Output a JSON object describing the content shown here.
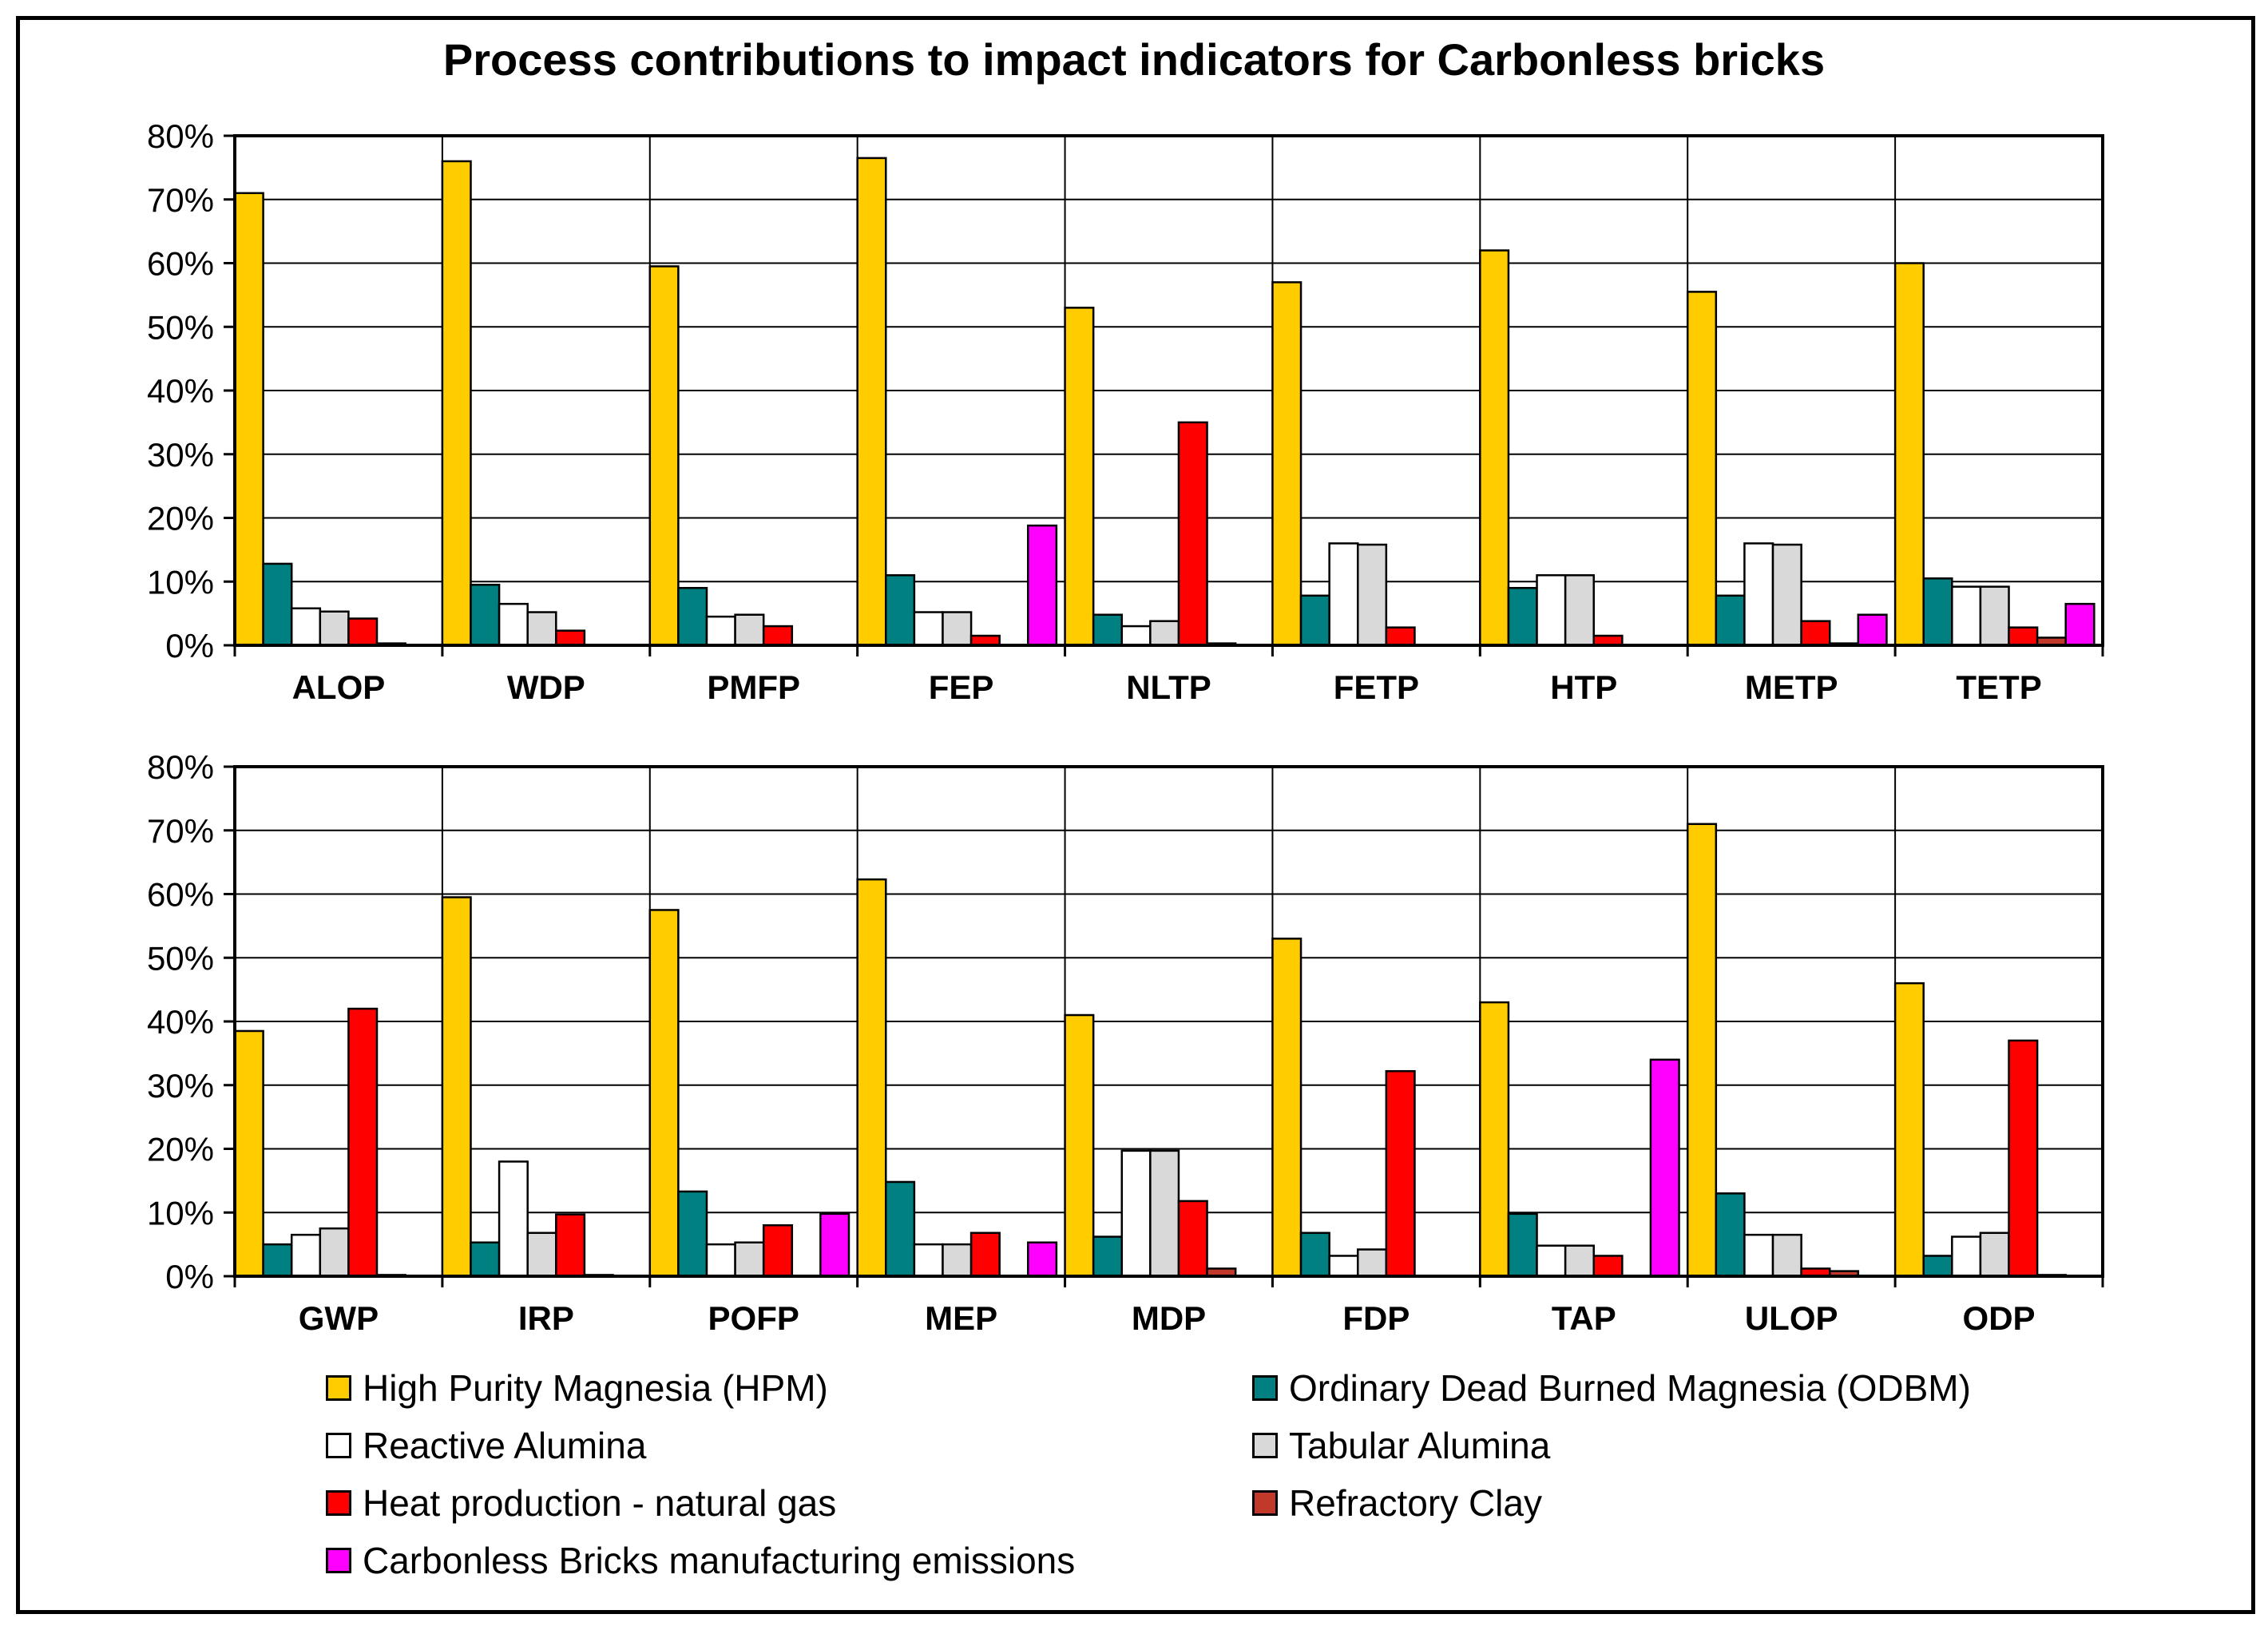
{
  "title": "Process contributions to impact indicators for Carbonless bricks",
  "legend": [
    {
      "label": "High Purity Magnesia (HPM)",
      "color": "#FFCC00"
    },
    {
      "label": "Ordinary Dead Burned Magnesia (ODBM)",
      "color": "#008080"
    },
    {
      "label": "Reactive Alumina",
      "color": "#FFFFFF"
    },
    {
      "label": "Tabular Alumina",
      "color": "#D9D9D9"
    },
    {
      "label": "Heat production - natural gas",
      "color": "#FF0000"
    },
    {
      "label": "Refractory Clay",
      "color": "#C0392B"
    },
    {
      "label": "Carbonless Bricks manufacturing emissions",
      "color": "#FF00FF"
    }
  ],
  "chart_data": [
    {
      "type": "bar",
      "categories": [
        "ALOP",
        "WDP",
        "PMFP",
        "FEP",
        "NLTP",
        "FETP",
        "HTP",
        "METP",
        "TETP"
      ],
      "ylim": [
        0,
        80
      ],
      "yticks": [
        "0%",
        "10%",
        "20%",
        "30%",
        "40%",
        "50%",
        "60%",
        "70%",
        "80%"
      ],
      "grid": true,
      "series": [
        {
          "name": "High Purity Magnesia (HPM)",
          "values": [
            71,
            76,
            59.5,
            76.5,
            53,
            57,
            62,
            55.5,
            60
          ]
        },
        {
          "name": "Ordinary Dead Burned Magnesia (ODBM)",
          "values": [
            12.8,
            9.5,
            9,
            11,
            4.8,
            7.8,
            9,
            7.8,
            10.5
          ]
        },
        {
          "name": "Reactive Alumina",
          "values": [
            5.8,
            6.5,
            4.5,
            5.2,
            3,
            16,
            11,
            16,
            9.2
          ]
        },
        {
          "name": "Tabular Alumina",
          "values": [
            5.3,
            5.2,
            4.8,
            5.2,
            3.8,
            15.8,
            11,
            15.8,
            9.2
          ]
        },
        {
          "name": "Heat production - natural gas",
          "values": [
            4.2,
            2.3,
            3,
            1.5,
            35,
            2.8,
            1.5,
            3.8,
            2.8
          ]
        },
        {
          "name": "Refractory Clay",
          "values": [
            0.3,
            0,
            0,
            0,
            0.3,
            0,
            0,
            0.3,
            1.2
          ]
        },
        {
          "name": "Carbonless Bricks manufacturing emissions",
          "values": [
            0,
            0,
            0,
            18.8,
            0,
            0,
            0,
            4.8,
            6.5
          ]
        }
      ]
    },
    {
      "type": "bar",
      "categories": [
        "GWP",
        "IRP",
        "POFP",
        "MEP",
        "MDP",
        "FDP",
        "TAP",
        "ULOP",
        "ODP"
      ],
      "ylim": [
        0,
        80
      ],
      "yticks": [
        "0%",
        "10%",
        "20%",
        "30%",
        "40%",
        "50%",
        "60%",
        "70%",
        "80%"
      ],
      "grid": true,
      "series": [
        {
          "name": "High Purity Magnesia (HPM)",
          "values": [
            38.5,
            59.5,
            57.5,
            62.3,
            41,
            53,
            43,
            71,
            46
          ]
        },
        {
          "name": "Ordinary Dead Burned Magnesia (ODBM)",
          "values": [
            5,
            5.3,
            13.3,
            14.8,
            6.2,
            6.8,
            9.8,
            13,
            3.2
          ]
        },
        {
          "name": "Reactive Alumina",
          "values": [
            6.5,
            18,
            5,
            5,
            19.7,
            3.2,
            4.8,
            6.5,
            6.2
          ]
        },
        {
          "name": "Tabular Alumina",
          "values": [
            7.5,
            6.8,
            5.3,
            5,
            19.7,
            4.2,
            4.8,
            6.5,
            6.8
          ]
        },
        {
          "name": "Heat production - natural gas",
          "values": [
            42,
            9.7,
            8,
            6.8,
            11.8,
            32.2,
            3.2,
            1.2,
            37
          ]
        },
        {
          "name": "Refractory Clay",
          "values": [
            0.2,
            0.2,
            0,
            0,
            1.2,
            0,
            0,
            0.8,
            0.2
          ]
        },
        {
          "name": "Carbonless Bricks manufacturing emissions",
          "values": [
            0,
            0,
            9.8,
            5.3,
            0,
            0,
            34,
            0,
            0
          ]
        }
      ]
    }
  ]
}
